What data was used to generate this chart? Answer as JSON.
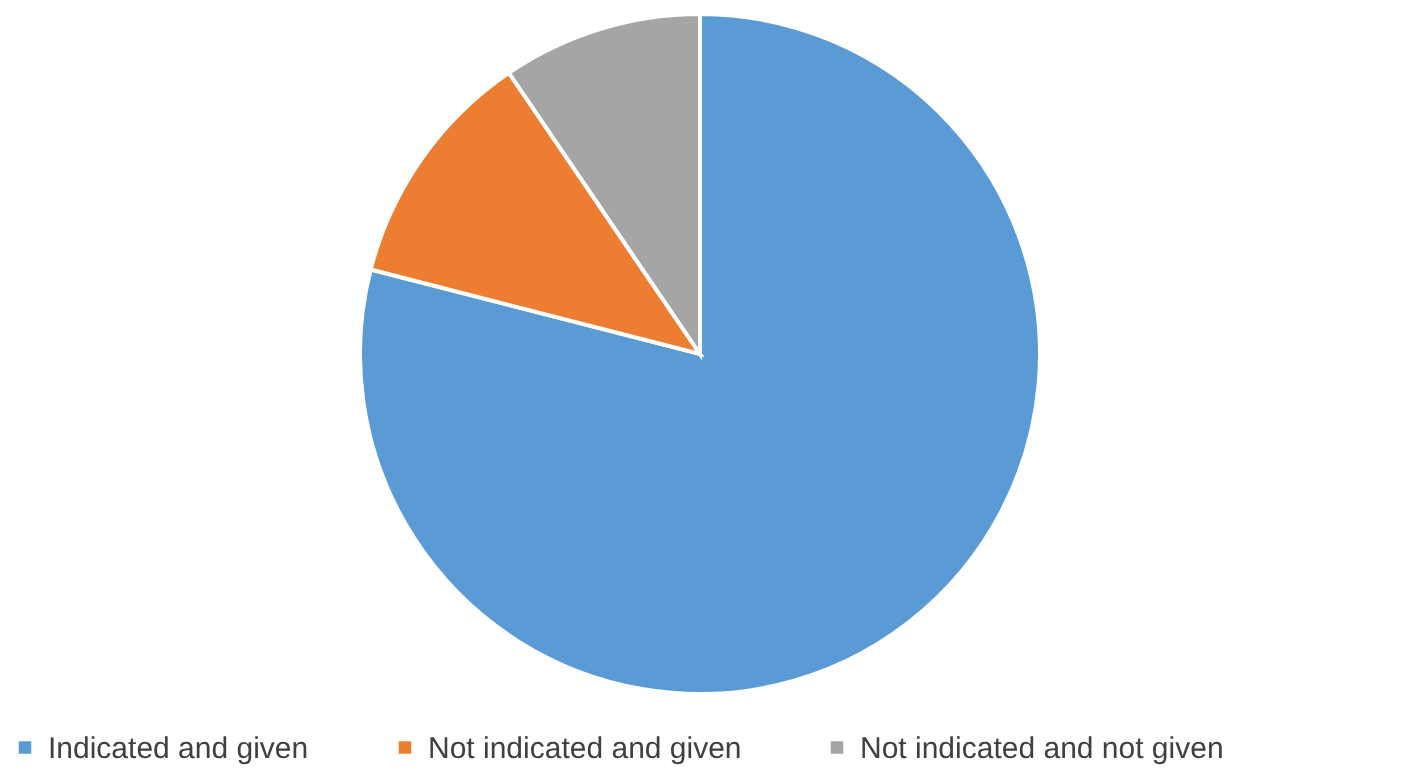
{
  "chart_data": {
    "type": "pie",
    "categories": [
      "Indicated and given",
      "Not indicated and given",
      "Not indicated and not given"
    ],
    "values": [
      79,
      11.5,
      9.5
    ],
    "colors": [
      "#5b9bd5",
      "#ed7d31",
      "#a5a5a5"
    ],
    "legend": "bottom"
  }
}
